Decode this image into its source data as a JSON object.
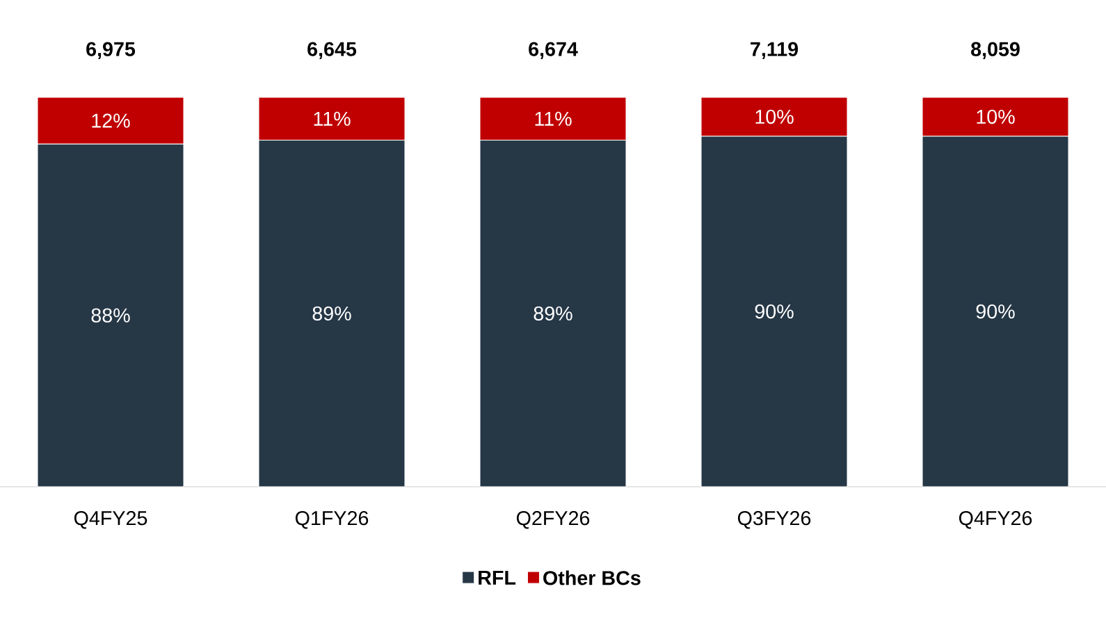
{
  "chart_data": {
    "type": "bar",
    "stacked": true,
    "categories": [
      "Q4FY25",
      "Q1FY26",
      "Q2FY26",
      "Q3FY26",
      "Q4FY26"
    ],
    "series": [
      {
        "name": "RFL",
        "color": "#263746",
        "values": [
          88,
          89,
          89,
          90,
          90
        ],
        "value_labels": [
          "88%",
          "89%",
          "89%",
          "90%",
          "90%"
        ]
      },
      {
        "name": "Other BCs",
        "color": "#c00000",
        "values": [
          12,
          11,
          11,
          10,
          10
        ],
        "value_labels": [
          "12%",
          "11%",
          "11%",
          "10%",
          "10%"
        ]
      }
    ],
    "annotations": [
      {
        "text": "6,975",
        "x": "Q4FY25",
        "y": 100
      },
      {
        "text": "6,645",
        "x": "Q1FY26",
        "y": 100
      },
      {
        "text": "6,674",
        "x": "Q2FY26",
        "y": 100
      },
      {
        "text": "7,119",
        "x": "Q3FY26",
        "y": 100
      },
      {
        "text": "8,059",
        "x": "Q4FY26",
        "y": 100
      }
    ],
    "legend": "bottom"
  }
}
